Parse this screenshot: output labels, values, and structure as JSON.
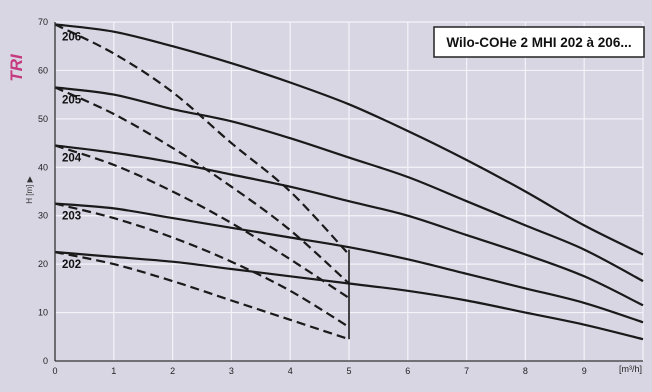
{
  "chart_data": {
    "type": "line",
    "title": "Wilo-COHe 2 MHI 202 à 206...",
    "side_label": "TRI",
    "ylabel": "H [m] ▶",
    "xlabel": "[m³/h]",
    "xlim": [
      0,
      10
    ],
    "ylim": [
      0,
      70
    ],
    "x_ticks": [
      "0",
      "1",
      "2",
      "3",
      "4",
      "5",
      "6",
      "7",
      "8",
      "9"
    ],
    "y_ticks": [
      "0",
      "10",
      "20",
      "30",
      "40",
      "50",
      "60",
      "70"
    ],
    "grid": true,
    "series": [
      {
        "name": "206",
        "solid": {
          "x": [
            0,
            1,
            2,
            3,
            4,
            5,
            6,
            7,
            8,
            9,
            10
          ],
          "y": [
            69.5,
            68,
            65,
            61.5,
            57.5,
            53,
            47.5,
            41.5,
            35,
            28,
            22
          ]
        },
        "dashed": {
          "x": [
            0,
            1,
            2,
            3,
            4,
            5
          ],
          "y": [
            69.5,
            63.5,
            55.5,
            45,
            35,
            22
          ]
        }
      },
      {
        "name": "205",
        "solid": {
          "x": [
            0,
            1,
            2,
            3,
            4,
            5,
            6,
            7,
            8,
            9,
            10
          ],
          "y": [
            56.5,
            55,
            52,
            49.5,
            46,
            42,
            38,
            33,
            28,
            23,
            16.5
          ]
        },
        "dashed": {
          "x": [
            0,
            1,
            2,
            3,
            4,
            5
          ],
          "y": [
            56.5,
            51,
            44,
            36,
            27,
            16
          ]
        }
      },
      {
        "name": "204",
        "solid": {
          "x": [
            0,
            1,
            2,
            3,
            4,
            5,
            6,
            7,
            8,
            9,
            10
          ],
          "y": [
            44.5,
            43,
            41,
            38.5,
            36,
            33,
            30,
            26,
            22,
            17.5,
            11.5
          ]
        },
        "dashed": {
          "x": [
            0,
            1,
            2,
            3,
            4,
            5
          ],
          "y": [
            44.5,
            40.5,
            35,
            28.5,
            21,
            13
          ]
        }
      },
      {
        "name": "203",
        "solid": {
          "x": [
            0,
            1,
            2,
            3,
            4,
            5,
            6,
            7,
            8,
            9,
            10
          ],
          "y": [
            32.5,
            31.5,
            29.5,
            27.5,
            25.5,
            23.5,
            21,
            18,
            15,
            12,
            8
          ]
        },
        "dashed": {
          "x": [
            0,
            1,
            2,
            3,
            4,
            5
          ],
          "y": [
            32.5,
            29.5,
            25.5,
            20.5,
            14.5,
            7
          ]
        }
      },
      {
        "name": "202",
        "solid": {
          "x": [
            0,
            1,
            2,
            3,
            4,
            5,
            6,
            7,
            8,
            9,
            10
          ],
          "y": [
            22.5,
            21.5,
            20.5,
            19,
            17.5,
            16,
            14.5,
            12.5,
            10,
            7.5,
            4.5
          ]
        },
        "dashed": {
          "x": [
            0,
            1,
            2,
            3,
            4,
            5
          ],
          "y": [
            22.5,
            20,
            16.5,
            12.5,
            8.5,
            4.5
          ]
        }
      }
    ],
    "colors": {
      "background": "#d9d6e4",
      "grid": "#f4f3f8",
      "curve": "#1a1a1a",
      "axis": "#333333",
      "side_label": "#c5397e",
      "title_box": "#ffffff"
    }
  }
}
